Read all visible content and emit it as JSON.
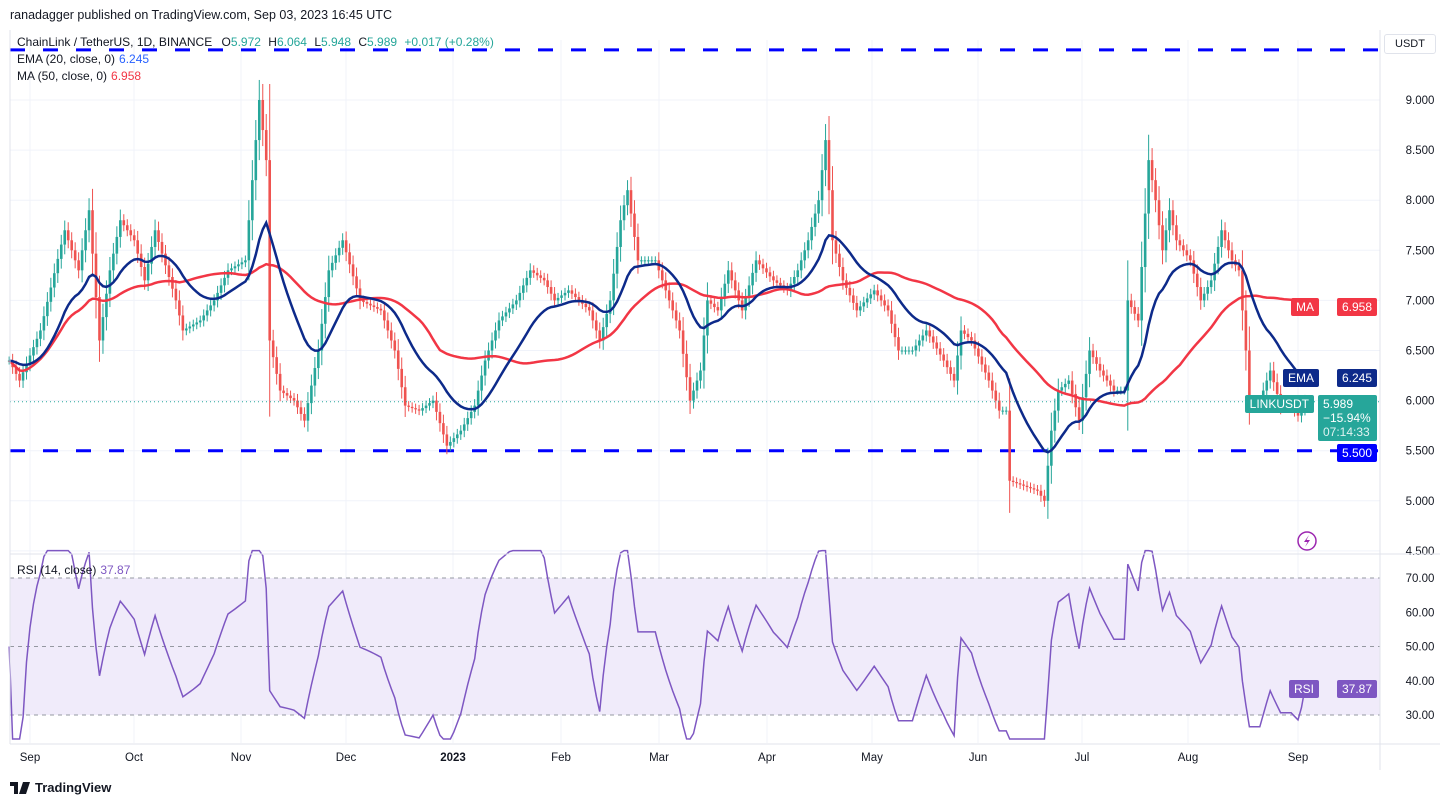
{
  "header": {
    "published": "ranadagger published on TradingView.com, Sep 03, 2023 16:45 UTC",
    "symbol": "ChainLink / TetherUS, 1D, BINANCE",
    "o_label": "O",
    "o": "5.972",
    "h_label": "H",
    "h": "6.064",
    "l_label": "L",
    "l": "5.948",
    "c_label": "C",
    "c": "5.989",
    "change": "+0.017 (+0.28%)",
    "ema_label": "EMA (20, close, 0)",
    "ema_value": "6.245",
    "ma_label": "MA (50, close, 0)",
    "ma_value": "6.958",
    "rsi_label": "RSI (14, close)",
    "rsi_value": "37.87"
  },
  "currency": "USDT",
  "badges": {
    "ma_tag": "MA",
    "ma_value": "6.958",
    "ema_tag": "EMA",
    "ema_value": "6.245",
    "symbol_tag": "LINKUSDT",
    "last_price": "5.989",
    "last_change": "−15.94%",
    "countdown": "07:14:33",
    "support": "5.500",
    "rsi_tag": "RSI",
    "rsi_value": "37.87"
  },
  "footer": {
    "brand": "TradingView"
  },
  "colors": {
    "up": "#26a69a",
    "down": "#ef5350",
    "ema": "#0d2a8a",
    "ma": "#f23645",
    "level": "#0000ff",
    "rsi": "#7e57c2",
    "rsi_band": "#f0ebfa"
  },
  "icons": {
    "lightning": "lightning-icon",
    "logo": "tradingview-logo-icon"
  },
  "chart_data": [
    {
      "type": "candlestick",
      "title": "ChainLink / TetherUS, 1D, BINANCE",
      "ylim": [
        4.5,
        9.5
      ],
      "y_ticks": [
        "9.000",
        "8.500",
        "8.000",
        "7.500",
        "7.000",
        "6.500",
        "6.000",
        "5.500",
        "5.000",
        "4.500"
      ],
      "x_ticks": [
        "Sep",
        "Oct",
        "Nov",
        "Dec",
        "2023",
        "Feb",
        "Mar",
        "Apr",
        "May",
        "Jun",
        "Jul",
        "Aug",
        "Sep"
      ],
      "horizontal_levels": [
        9.5,
        5.5
      ],
      "grid": true,
      "series": [
        {
          "name": "LINKUSDT",
          "kind": "close",
          "points": [
            [
              "2022-08-26",
              6.4
            ],
            [
              "2022-08-29",
              6.2
            ],
            [
              "2022-09-04",
              6.7
            ],
            [
              "2022-09-11",
              7.7
            ],
            [
              "2022-09-15",
              7.3
            ],
            [
              "2022-09-18",
              7.9
            ],
            [
              "2022-09-21",
              6.6
            ],
            [
              "2022-09-24",
              7.3
            ],
            [
              "2022-09-27",
              7.8
            ],
            [
              "2022-10-01",
              7.6
            ],
            [
              "2022-10-04",
              7.2
            ],
            [
              "2022-10-07",
              7.7
            ],
            [
              "2022-10-13",
              7.0
            ],
            [
              "2022-10-15",
              6.7
            ],
            [
              "2022-10-20",
              6.8
            ],
            [
              "2022-10-24",
              7.0
            ],
            [
              "2022-10-28",
              7.3
            ],
            [
              "2022-11-02",
              7.4
            ],
            [
              "2022-11-04",
              8.2
            ],
            [
              "2022-11-06",
              9.0
            ],
            [
              "2022-11-08",
              8.4
            ],
            [
              "2022-11-09",
              6.6
            ],
            [
              "2022-11-12",
              6.1
            ],
            [
              "2022-11-16",
              6.0
            ],
            [
              "2022-11-19",
              5.8
            ],
            [
              "2022-11-23",
              6.5
            ],
            [
              "2022-11-26",
              7.3
            ],
            [
              "2022-11-30",
              7.6
            ],
            [
              "2022-12-05",
              7.0
            ],
            [
              "2022-12-11",
              6.9
            ],
            [
              "2022-12-15",
              6.5
            ],
            [
              "2022-12-18",
              5.95
            ],
            [
              "2022-12-22",
              5.9
            ],
            [
              "2022-12-26",
              6.0
            ],
            [
              "2022-12-30",
              5.55
            ],
            [
              "2023-01-03",
              5.7
            ],
            [
              "2023-01-07",
              5.95
            ],
            [
              "2023-01-10",
              6.4
            ],
            [
              "2023-01-14",
              6.8
            ],
            [
              "2023-01-19",
              7.0
            ],
            [
              "2023-01-23",
              7.3
            ],
            [
              "2023-01-27",
              7.2
            ],
            [
              "2023-01-30",
              7.0
            ],
            [
              "2023-02-03",
              7.1
            ],
            [
              "2023-02-09",
              6.9
            ],
            [
              "2023-02-12",
              6.6
            ],
            [
              "2023-02-15",
              7.0
            ],
            [
              "2023-02-18",
              7.8
            ],
            [
              "2023-02-20",
              8.1
            ],
            [
              "2023-02-23",
              7.4
            ],
            [
              "2023-02-28",
              7.4
            ],
            [
              "2023-03-03",
              7.1
            ],
            [
              "2023-03-07",
              6.7
            ],
            [
              "2023-03-10",
              6.0
            ],
            [
              "2023-03-13",
              6.3
            ],
            [
              "2023-03-15",
              7.0
            ],
            [
              "2023-03-18",
              6.9
            ],
            [
              "2023-03-21",
              7.3
            ],
            [
              "2023-03-25",
              6.9
            ],
            [
              "2023-03-29",
              7.4
            ],
            [
              "2023-04-03",
              7.2
            ],
            [
              "2023-04-07",
              7.1
            ],
            [
              "2023-04-10",
              7.3
            ],
            [
              "2023-04-13",
              7.6
            ],
            [
              "2023-04-16",
              8.0
            ],
            [
              "2023-04-18",
              8.6
            ],
            [
              "2023-04-20",
              7.6
            ],
            [
              "2023-04-23",
              7.2
            ],
            [
              "2023-04-27",
              6.9
            ],
            [
              "2023-05-02",
              7.1
            ],
            [
              "2023-05-06",
              6.9
            ],
            [
              "2023-05-09",
              6.5
            ],
            [
              "2023-05-13",
              6.5
            ],
            [
              "2023-05-17",
              6.7
            ],
            [
              "2023-05-22",
              6.4
            ],
            [
              "2023-05-25",
              6.2
            ],
            [
              "2023-05-27",
              6.7
            ],
            [
              "2023-05-30",
              6.6
            ],
            [
              "2023-06-04",
              6.2
            ],
            [
              "2023-06-07",
              5.9
            ],
            [
              "2023-06-09",
              5.9
            ],
            [
              "2023-06-10",
              5.2
            ],
            [
              "2023-06-14",
              5.15
            ],
            [
              "2023-06-18",
              5.1
            ],
            [
              "2023-06-20",
              5.0
            ],
            [
              "2023-06-22",
              5.7
            ],
            [
              "2023-06-24",
              6.1
            ],
            [
              "2023-06-27",
              6.2
            ],
            [
              "2023-06-30",
              5.8
            ],
            [
              "2023-07-03",
              6.5
            ],
            [
              "2023-07-06",
              6.3
            ],
            [
              "2023-07-10",
              6.1
            ],
            [
              "2023-07-13",
              6.1
            ],
            [
              "2023-07-14",
              7.0
            ],
            [
              "2023-07-17",
              6.8
            ],
            [
              "2023-07-20",
              8.4
            ],
            [
              "2023-07-22",
              8.0
            ],
            [
              "2023-07-24",
              7.5
            ],
            [
              "2023-07-26",
              7.9
            ],
            [
              "2023-07-28",
              7.6
            ],
            [
              "2023-08-01",
              7.4
            ],
            [
              "2023-08-04",
              7.0
            ],
            [
              "2023-08-07",
              7.2
            ],
            [
              "2023-08-10",
              7.7
            ],
            [
              "2023-08-13",
              7.4
            ],
            [
              "2023-08-15",
              7.3
            ],
            [
              "2023-08-17",
              6.5
            ],
            [
              "2023-08-18",
              6.0
            ],
            [
              "2023-08-21",
              6.0
            ],
            [
              "2023-08-24",
              6.3
            ],
            [
              "2023-08-27",
              5.95
            ],
            [
              "2023-08-30",
              5.95
            ],
            [
              "2023-09-01",
              5.85
            ],
            [
              "2023-09-03",
              5.989
            ]
          ]
        },
        {
          "name": "EMA (20, close, 0)",
          "last": 6.245
        },
        {
          "name": "MA (50, close, 0)",
          "last": 6.958
        }
      ]
    },
    {
      "type": "line",
      "title": "RSI (14, close)",
      "ylim": [
        23,
        78
      ],
      "y_ticks": [
        "70.00",
        "60.00",
        "50.00",
        "40.00",
        "30.00"
      ],
      "band": [
        30,
        70
      ],
      "last": 37.87
    }
  ]
}
